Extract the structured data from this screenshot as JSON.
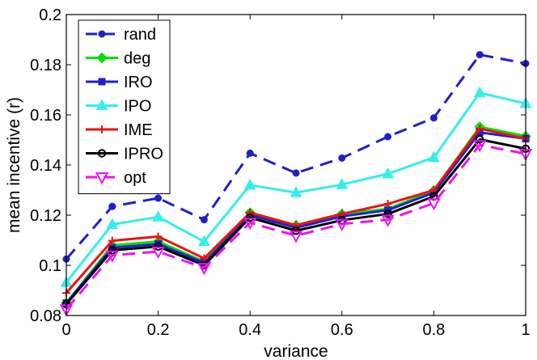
{
  "chart_data": {
    "type": "line",
    "xlabel": "variance",
    "ylabel": "mean incentive (r)",
    "xlim": [
      0,
      1
    ],
    "ylim": [
      0.08,
      0.2
    ],
    "xticks": [
      "0",
      "0.2",
      "0.4",
      "0.6",
      "0.8",
      "1"
    ],
    "yticks": [
      "0.08",
      "0.1",
      "0.12",
      "0.14",
      "0.16",
      "0.18",
      "0.2"
    ],
    "xtick_values": [
      0,
      0.2,
      0.4,
      0.6,
      0.8,
      1
    ],
    "ytick_values": [
      0.08,
      0.1,
      0.12,
      0.14,
      0.16,
      0.18,
      0.2
    ],
    "x": [
      0,
      0.1,
      0.2,
      0.3,
      0.4,
      0.5,
      0.6,
      0.7,
      0.8,
      0.9,
      1.0
    ],
    "legend_position": "top-left",
    "series": [
      {
        "name": "rand",
        "color": "#1f1fcc",
        "dash": "dashed",
        "marker": "circle-filled",
        "values": [
          0.1025,
          0.1235,
          0.1268,
          0.1182,
          0.1447,
          0.1368,
          0.1428,
          0.1513,
          0.1588,
          0.184,
          0.1805
        ]
      },
      {
        "name": "deg",
        "color": "#00e000",
        "dash": "solid",
        "marker": "diamond",
        "values": [
          0.085,
          0.108,
          0.1095,
          0.1015,
          0.121,
          0.116,
          0.1205,
          0.1225,
          0.1298,
          0.1552,
          0.1515
        ]
      },
      {
        "name": "IRO",
        "color": "#1f1fcc",
        "dash": "solid",
        "marker": "square",
        "values": [
          0.085,
          0.107,
          0.1085,
          0.101,
          0.12,
          0.115,
          0.1195,
          0.122,
          0.129,
          0.153,
          0.1505
        ]
      },
      {
        "name": "IPO",
        "color": "#33eeee",
        "dash": "solid",
        "marker": "triangle-up",
        "values": [
          0.0932,
          0.1163,
          0.1193,
          0.1095,
          0.132,
          0.129,
          0.1322,
          0.1365,
          0.143,
          0.1688,
          0.1645
        ]
      },
      {
        "name": "IME",
        "color": "#ee1111",
        "dash": "solid",
        "marker": "plus",
        "values": [
          0.089,
          0.1098,
          0.1115,
          0.1028,
          0.121,
          0.116,
          0.1205,
          0.1245,
          0.13,
          0.1545,
          0.1505
        ]
      },
      {
        "name": "IPRO",
        "color": "#000000",
        "dash": "solid",
        "marker": "circle-open",
        "values": [
          0.0845,
          0.106,
          0.1075,
          0.1,
          0.119,
          0.1138,
          0.118,
          0.1205,
          0.1275,
          0.1502,
          0.1465
        ]
      },
      {
        "name": "opt",
        "color": "#ee11ee",
        "dash": "dashed",
        "marker": "triangle-down",
        "values": [
          0.0825,
          0.104,
          0.1055,
          0.099,
          0.117,
          0.1118,
          0.1165,
          0.1182,
          0.1248,
          0.148,
          0.1445
        ]
      }
    ]
  }
}
